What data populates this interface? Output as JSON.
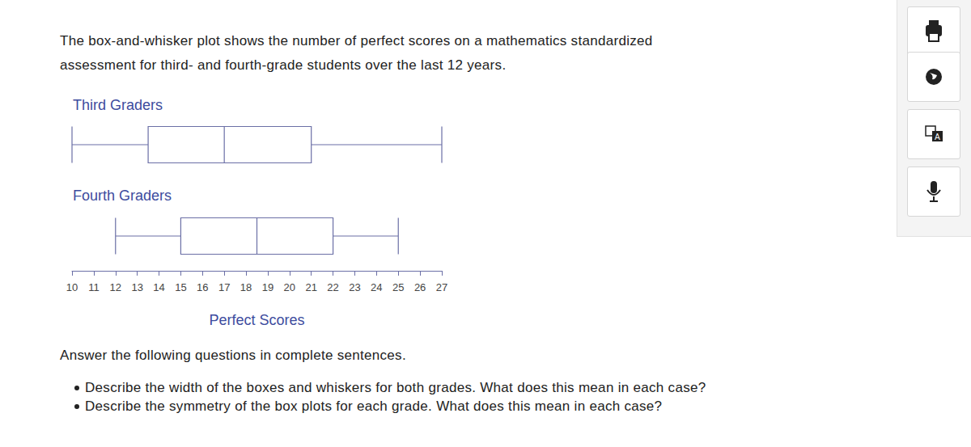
{
  "prompt": [
    "The box-and-whisker plot shows the number of perfect scores on a mathematics standardized",
    "assessment for third- and fourth-grade students over the last 12 years."
  ],
  "chart_data": {
    "type": "boxplot",
    "categories": [
      "Third Graders",
      "Fourth Graders"
    ],
    "values": [
      [
        10,
        13.5,
        17,
        21,
        27
      ],
      [
        12,
        15,
        18.5,
        22,
        25
      ]
    ],
    "xlabel": "Perfect Scores",
    "xlim": [
      10,
      27
    ],
    "xticks": [
      10,
      11,
      12,
      13,
      14,
      15,
      16,
      17,
      18,
      19,
      20,
      21,
      22,
      23,
      24,
      25,
      26,
      27
    ],
    "color": "#6b6fa6",
    "grid": false
  },
  "instructions": "Answer the following questions in complete sentences.",
  "questions": [
    "Describe the width of the boxes and whiskers for both grades. What does this mean in each case?",
    "Describe the symmetry of the box plots for each grade. What does this mean in each case?"
  ]
}
